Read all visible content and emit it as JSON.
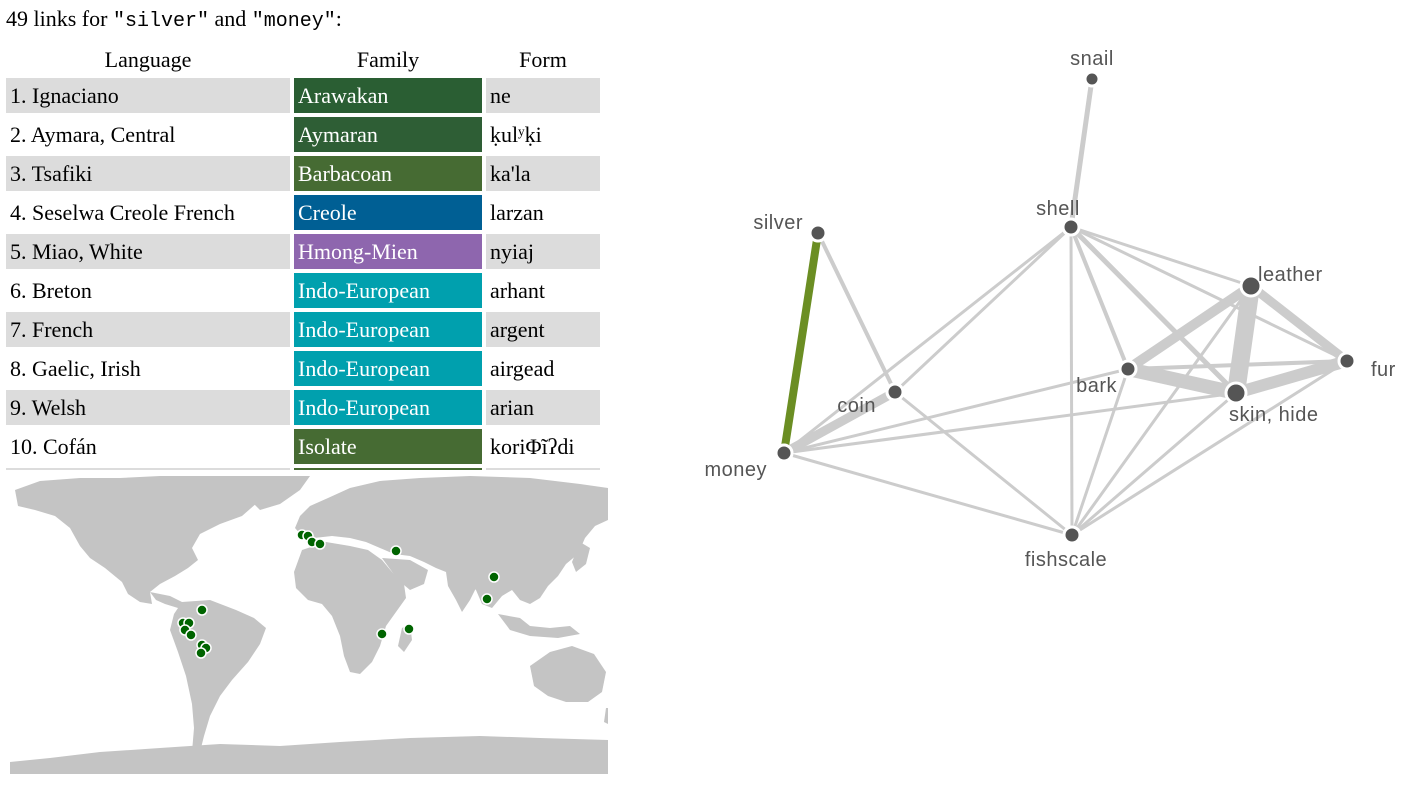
{
  "heading": {
    "count_text": "49 links for ",
    "q1": "\"silver\"",
    "and_text": " and ",
    "q2": "\"money\"",
    "colon": ":"
  },
  "table": {
    "headers": {
      "language": "Language",
      "family": "Family",
      "form": "Form"
    },
    "rows": [
      {
        "n": "1.",
        "language": "Ignaciano",
        "family": "Arawakan",
        "family_color": "#2a5e33",
        "form": "ne"
      },
      {
        "n": "2.",
        "language": "Aymara, Central",
        "family": "Aymaran",
        "family_color": "#2e5e35",
        "form": "ḳulʸḳi"
      },
      {
        "n": "3.",
        "language": "Tsafiki",
        "family": "Barbacoan",
        "family_color": "#466b33",
        "form": "ka'la"
      },
      {
        "n": "4.",
        "language": "Seselwa Creole French",
        "family": "Creole",
        "family_color": "#005f94",
        "form": "larzan"
      },
      {
        "n": "5.",
        "language": "Miao, White",
        "family": "Hmong-Mien",
        "family_color": "#8e66ae",
        "form": "nyiaj"
      },
      {
        "n": "6.",
        "language": "Breton",
        "family": "Indo-European",
        "family_color": "#00a0ae",
        "form": "arhant"
      },
      {
        "n": "7.",
        "language": "French",
        "family": "Indo-European",
        "family_color": "#00a0ae",
        "form": "argent"
      },
      {
        "n": "8.",
        "language": "Gaelic, Irish",
        "family": "Indo-European",
        "family_color": "#00a0ae",
        "form": "airgead"
      },
      {
        "n": "9.",
        "language": "Welsh",
        "family": "Indo-European",
        "family_color": "#00a0ae",
        "form": "arian"
      },
      {
        "n": "10.",
        "language": "Cofán",
        "family": "Isolate",
        "family_color": "#466b33",
        "form": "koriΦĩʔdi"
      }
    ]
  },
  "map": {
    "land_color": "#c4c4c4",
    "dot_color": "#006400"
  },
  "graph": {
    "node_color": "#555555",
    "edge_color": "#cccccc",
    "highlight_color": "#6b8e23",
    "nodes": {
      "snail": "snail",
      "shell": "shell",
      "silver": "silver",
      "leather": "leather",
      "fur": "fur",
      "bark": "bark",
      "coin": "coin",
      "skin": "skin, hide",
      "money": "money",
      "fishscale": "fishscale"
    }
  }
}
